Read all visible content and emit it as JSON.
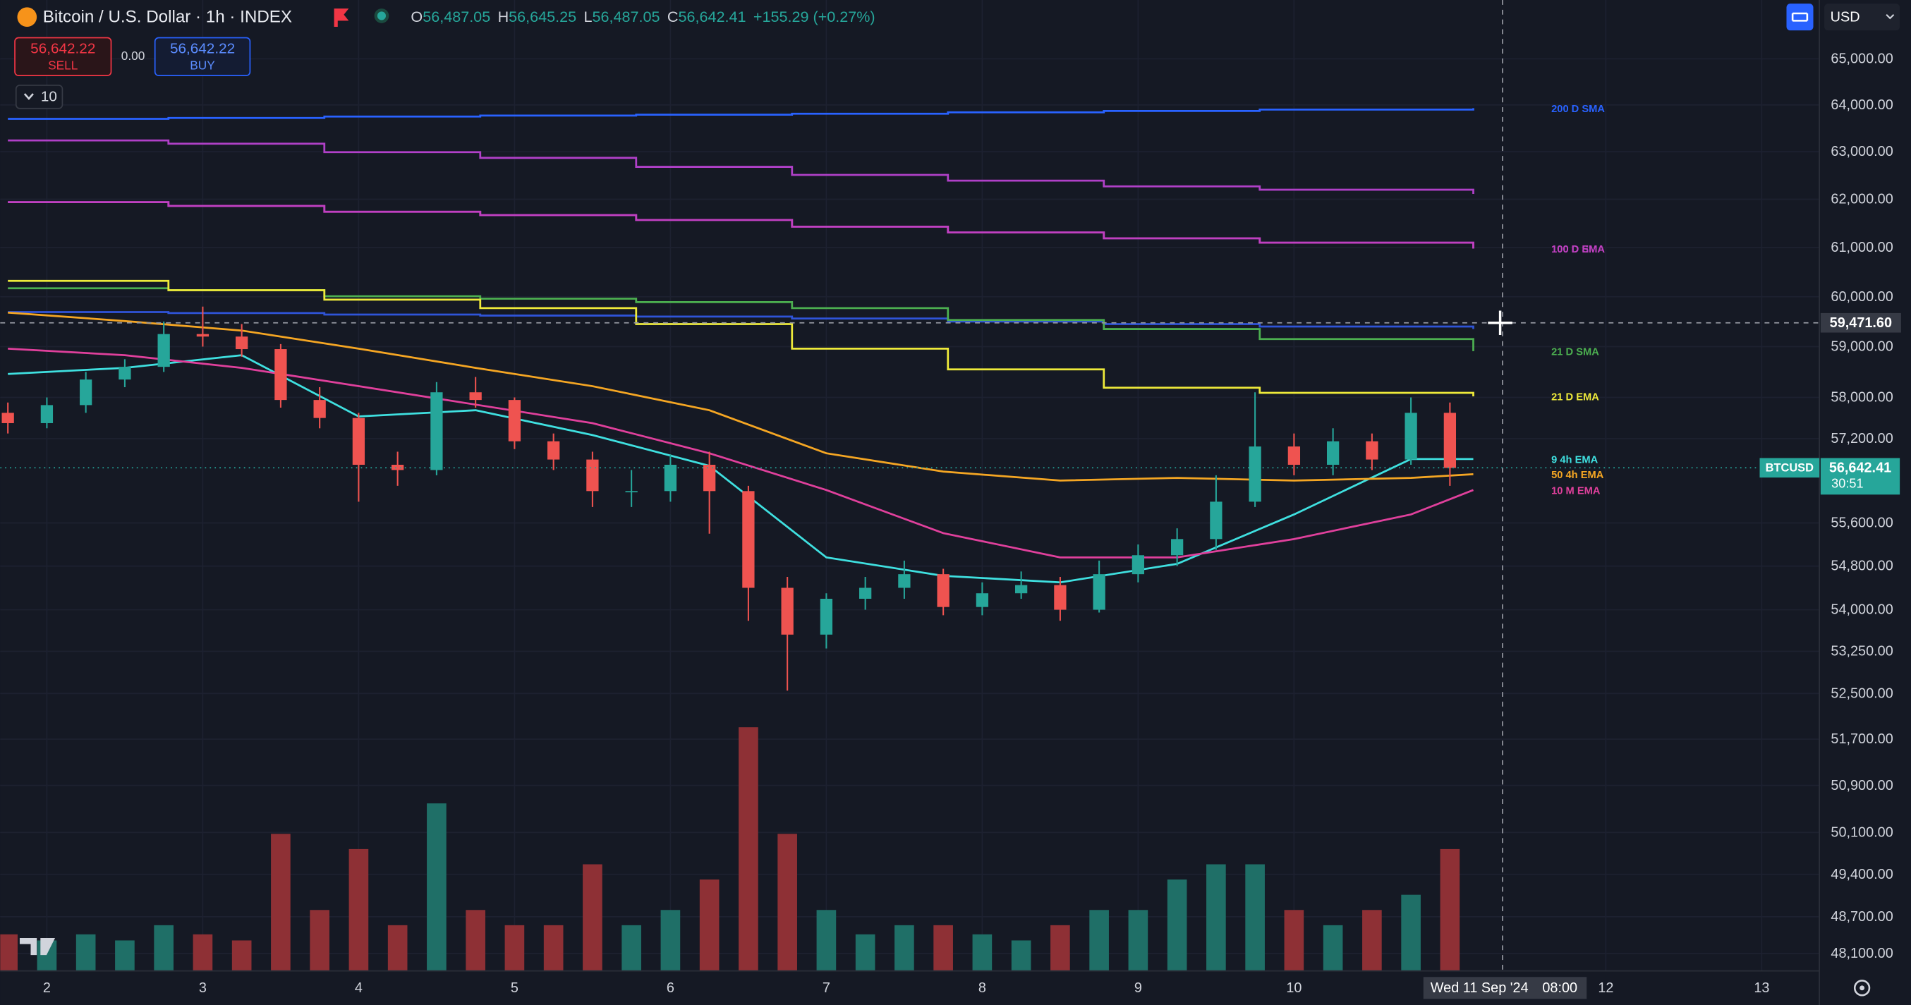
{
  "toolbar": {
    "title": "Bitcoin / U.S. Dollar · 1h · INDEX",
    "ohlc": [
      {
        "key": "O",
        "value": "56,487.05"
      },
      {
        "key": "H",
        "value": "56,645.25"
      },
      {
        "key": "L",
        "value": "56,487.05"
      },
      {
        "key": "C",
        "value": "56,642.41"
      }
    ],
    "change": "+155.29 (+0.27%)",
    "sell_price": "56,642.22",
    "sell_label": "SELL",
    "spread": "0.00",
    "buy_price": "56,642.22",
    "buy_label": "BUY",
    "indicator_count": "10",
    "currency": "USD"
  },
  "chart_data": {
    "type": "candlestick",
    "log": true,
    "grid": true,
    "xlim": [
      1.74,
      13.37
    ],
    "xticks": [
      2,
      3,
      4,
      5,
      6,
      7,
      8,
      9,
      10,
      12,
      13
    ],
    "ylim": [
      47820,
      66300
    ],
    "yticks": [
      {
        "value": 65000,
        "label": "65,000.00"
      },
      {
        "value": 64000,
        "label": "64,000.00"
      },
      {
        "value": 63000,
        "label": "63,000.00"
      },
      {
        "value": 62000,
        "label": "62,000.00"
      },
      {
        "value": 61000,
        "label": "61,000.00"
      },
      {
        "value": 60000,
        "label": "60,000.00"
      },
      {
        "value": 59000,
        "label": "59,000.00"
      },
      {
        "value": 58000,
        "label": "58,000.00"
      },
      {
        "value": 57200,
        "label": "57,200.00"
      },
      {
        "value": 55600,
        "label": "55,600.00"
      },
      {
        "value": 54800,
        "label": "54,800.00"
      },
      {
        "value": 54000,
        "label": "54,000.00"
      },
      {
        "value": 53250,
        "label": "53,250.00"
      },
      {
        "value": 52500,
        "label": "52,500.00"
      },
      {
        "value": 51700,
        "label": "51,700.00"
      },
      {
        "value": 50900,
        "label": "50,900.00"
      },
      {
        "value": 50100,
        "label": "50,100.00"
      },
      {
        "value": 49400,
        "label": "49,400.00"
      },
      {
        "value": 48700,
        "label": "48,700.00"
      },
      {
        "value": 48100,
        "label": "48,100.00"
      }
    ],
    "candles": {
      "up_color": "#26a69a",
      "down_color": "#ef5350",
      "volume_up_color": "#1f6f67",
      "volume_down_color": "#8e3035",
      "volume_ylim": [
        0,
        100
      ],
      "x": [
        1.75,
        2.0,
        2.25,
        2.5,
        2.75,
        3.0,
        3.25,
        3.5,
        3.75,
        4.0,
        4.25,
        4.5,
        4.75,
        5.0,
        5.25,
        5.5,
        5.75,
        6.0,
        6.25,
        6.5,
        6.75,
        7.0,
        7.25,
        7.5,
        7.75,
        8.0,
        8.25,
        8.5,
        8.75,
        9.0,
        9.25,
        9.5,
        9.75,
        10.0,
        10.25,
        10.5,
        10.75,
        11.0
      ],
      "open": [
        57700,
        57500,
        57850,
        58350,
        58600,
        59250,
        59200,
        58950,
        57950,
        57600,
        56700,
        56600,
        58100,
        57950,
        57150,
        56800,
        56200,
        56200,
        56700,
        56200,
        54400,
        53550,
        54200,
        54400,
        54650,
        54050,
        54300,
        54450,
        54000,
        54650,
        55000,
        55300,
        56000,
        57050,
        56700,
        57150,
        56800,
        57700
      ],
      "high": [
        57900,
        58000,
        58500,
        58750,
        59500,
        59800,
        59450,
        59050,
        58200,
        57700,
        56950,
        58300,
        58400,
        58000,
        57300,
        56950,
        56600,
        56900,
        56950,
        56300,
        54600,
        54300,
        54600,
        54900,
        54750,
        54500,
        54700,
        54600,
        54900,
        55200,
        55500,
        56500,
        58100,
        57300,
        57400,
        57300,
        58000,
        57900
      ],
      "low": [
        57300,
        57400,
        57700,
        58200,
        58500,
        59000,
        58800,
        57800,
        57400,
        56000,
        56300,
        56500,
        57800,
        57000,
        56600,
        55900,
        55900,
        56000,
        55400,
        53800,
        52550,
        53300,
        54000,
        54200,
        53900,
        53900,
        54200,
        53800,
        53950,
        54500,
        54800,
        55100,
        55900,
        56500,
        56500,
        56600,
        56700,
        56300
      ],
      "close": [
        57500,
        57850,
        58350,
        58600,
        59250,
        59200,
        58950,
        57950,
        57600,
        56700,
        56600,
        58100,
        57950,
        57150,
        56800,
        56200,
        56200,
        56700,
        56200,
        54400,
        53550,
        54200,
        54400,
        54650,
        54050,
        54300,
        54450,
        54000,
        54650,
        55000,
        55300,
        56000,
        57050,
        56700,
        57150,
        56800,
        57700,
        56640
      ],
      "volume": [
        12,
        10,
        12,
        10,
        15,
        12,
        10,
        45,
        20,
        40,
        15,
        55,
        20,
        15,
        15,
        35,
        15,
        20,
        30,
        80,
        45,
        20,
        12,
        15,
        15,
        12,
        10,
        15,
        20,
        20,
        30,
        35,
        35,
        20,
        15,
        20,
        25,
        40
      ]
    },
    "series": [
      {
        "name": "200 D SMA",
        "color": "#2962ff",
        "step": true,
        "x": [
          1.75,
          2.78,
          3.78,
          4.78,
          5.78,
          6.78,
          7.78,
          8.78,
          9.78,
          11.15
        ],
        "values": [
          63700,
          63720,
          63750,
          63770,
          63790,
          63810,
          63840,
          63870,
          63900,
          63930
        ]
      },
      {
        "color": "#b040c8",
        "step": true,
        "x": [
          1.75,
          2.78,
          3.78,
          4.78,
          5.78,
          6.78,
          7.78,
          8.78,
          9.78,
          11.15
        ],
        "values": [
          63240,
          63170,
          62990,
          62870,
          62680,
          62510,
          62390,
          62270,
          62200,
          62110
        ]
      },
      {
        "name": "100 D SMA",
        "color": "#b040c8",
        "step": true,
        "x": [
          1.75,
          2.78,
          3.78,
          4.78,
          5.78,
          6.78,
          7.78,
          8.78,
          9.78,
          11.15
        ],
        "values": [
          61940,
          61860,
          61740,
          61670,
          61570,
          61430,
          61310,
          61190,
          61100,
          60980
        ]
      },
      {
        "name": "100 D EMA",
        "color": "#c040c0",
        "step": true,
        "x": [
          1.75,
          2.78,
          3.78,
          4.78,
          5.78,
          6.78,
          7.78,
          8.78,
          9.78,
          11.15
        ],
        "values": [
          61940,
          61860,
          61740,
          61670,
          61570,
          61430,
          61310,
          61190,
          61100,
          60980
        ]
      },
      {
        "color": "#2f54d8",
        "step": true,
        "x": [
          1.75,
          2.78,
          3.78,
          4.78,
          5.78,
          6.78,
          7.78,
          8.78,
          9.78,
          11.15
        ],
        "values": [
          59690,
          59670,
          59640,
          59620,
          59600,
          59560,
          59500,
          59450,
          59400,
          59350
        ]
      },
      {
        "name": "21 D SMA",
        "color": "#4caf50",
        "step": true,
        "x": [
          1.75,
          2.78,
          3.78,
          4.78,
          5.78,
          6.78,
          7.78,
          8.78,
          9.78,
          11.15
        ],
        "values": [
          60170,
          60130,
          60010,
          59960,
          59890,
          59770,
          59530,
          59350,
          59150,
          58910
        ]
      },
      {
        "name": "21 D EMA",
        "color": "#eeea3a",
        "step": true,
        "x": [
          1.75,
          2.78,
          3.78,
          4.78,
          5.78,
          6.78,
          7.78,
          8.78,
          9.78,
          11.15
        ],
        "values": [
          60320,
          60130,
          59940,
          59770,
          59450,
          58960,
          58550,
          58190,
          58090,
          58020
        ]
      },
      {
        "name": "9 4h EMA",
        "color": "#3fe0e0",
        "x": [
          1.75,
          2.5,
          3.25,
          4.0,
          4.75,
          5.5,
          6.25,
          7.0,
          7.75,
          8.5,
          9.25,
          10.0,
          10.75,
          11.15
        ],
        "values": [
          58460,
          58580,
          58830,
          57630,
          57750,
          57270,
          56680,
          54960,
          54620,
          54500,
          54840,
          55760,
          56810,
          56810
        ]
      },
      {
        "name": "50 4h EMA",
        "color": "#f5a623",
        "x": [
          1.75,
          2.5,
          3.25,
          4.0,
          4.75,
          5.5,
          6.25,
          7.0,
          7.75,
          8.5,
          9.25,
          10.0,
          10.75,
          11.15
        ],
        "values": [
          59680,
          59510,
          59320,
          58960,
          58580,
          58220,
          57750,
          56920,
          56570,
          56400,
          56450,
          56400,
          56450,
          56520
        ]
      },
      {
        "name": "10 M EMA",
        "color": "#e0409c",
        "x": [
          1.75,
          2.5,
          3.25,
          4.0,
          4.75,
          5.5,
          6.25,
          7.0,
          7.75,
          8.5,
          9.25,
          10.0,
          10.75,
          11.15
        ],
        "values": [
          58960,
          58830,
          58580,
          58220,
          57860,
          57500,
          56920,
          56220,
          55410,
          54960,
          54960,
          55300,
          55760,
          56220
        ]
      }
    ],
    "last_price": {
      "value": 56642.41,
      "label": "56,642.41"
    },
    "symbol": "BTCUSD",
    "countdown": "30:51",
    "crosshair": {
      "date": "Wed 11 Sep '24",
      "time": "08:00",
      "price": "59,471.60"
    }
  }
}
